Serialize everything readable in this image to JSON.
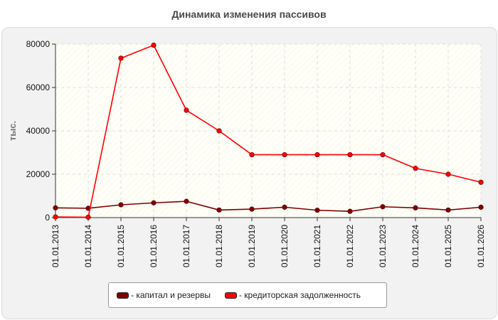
{
  "chart_data": {
    "type": "line",
    "title": "Динамика изменения пассивов",
    "ylabel": "тыс.",
    "xlabel": "",
    "ylim": [
      0,
      80000
    ],
    "yticks": [
      0,
      20000,
      40000,
      60000,
      80000
    ],
    "grid": true,
    "legend_position": "bottom",
    "categories": [
      "01.01.2013",
      "01.01.2014",
      "01.01.2015",
      "01.01.2016",
      "01.01.2017",
      "01.01.2018",
      "01.01.2019",
      "01.01.2020",
      "01.01.2021",
      "01.01.2022",
      "01.01.2023",
      "01.01.2024",
      "01.01.2025",
      "01.01.2026"
    ],
    "series": [
      {
        "name": "капитал и резервы",
        "color": "#800000",
        "values": [
          4500,
          4300,
          5900,
          6800,
          7500,
          3500,
          3900,
          4800,
          3400,
          2900,
          5000,
          4500,
          3500,
          4800
        ]
      },
      {
        "name": "кредиторская задолженность",
        "color": "#ff0000",
        "values": [
          300,
          200,
          73500,
          79500,
          49500,
          40000,
          29000,
          29000,
          29000,
          29000,
          29000,
          22700,
          20000,
          16300
        ]
      }
    ]
  }
}
